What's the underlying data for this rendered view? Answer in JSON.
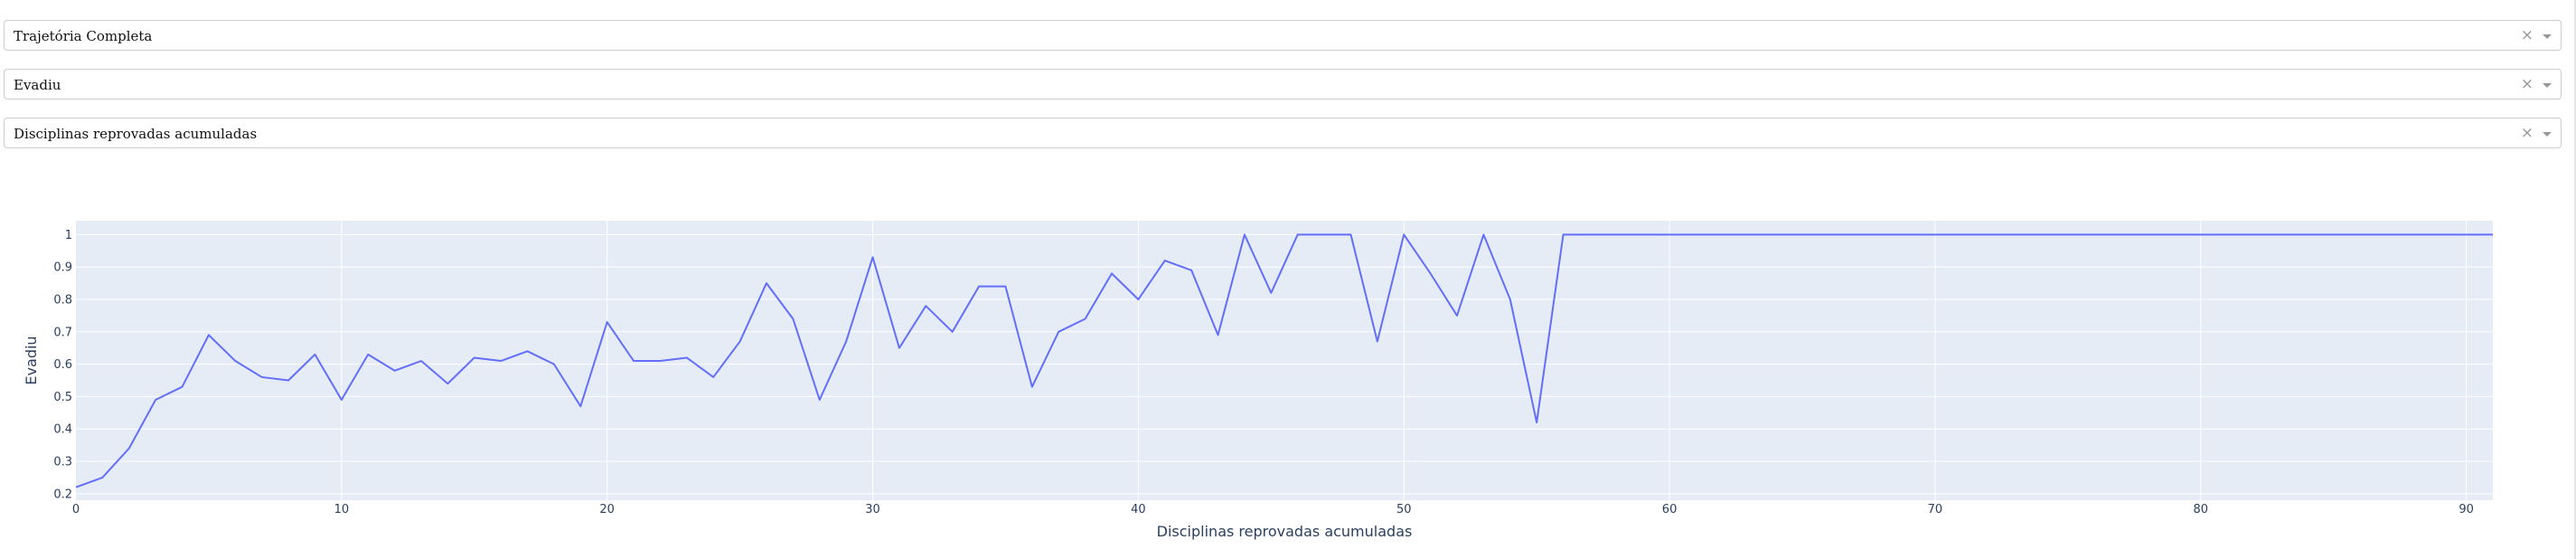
{
  "dropdowns": [
    {
      "value": "Trajetória Completa",
      "clear_glyph": "×"
    },
    {
      "value": "Evadiu",
      "clear_glyph": "×"
    },
    {
      "value": "Disciplinas reprovadas acumuladas",
      "clear_glyph": "×"
    }
  ],
  "colors": {
    "line": "#636efa",
    "plot_bg": "#e5ecf6",
    "grid": "#ffffff",
    "axis_text": "#2a3f5f"
  },
  "chart_data": {
    "type": "line",
    "title": "",
    "xlabel": "Disciplinas reprovadas acumuladas",
    "ylabel": "Evadiu",
    "xlim": [
      0,
      91
    ],
    "ylim": [
      0.18,
      1.043
    ],
    "xticks": [
      0,
      10,
      20,
      30,
      40,
      50,
      60,
      70,
      80,
      90
    ],
    "yticks": [
      0.2,
      0.3,
      0.4,
      0.5,
      0.6,
      0.7,
      0.8,
      0.9,
      1
    ],
    "grid": true,
    "series": [
      {
        "x": [
          0,
          1,
          2,
          3,
          4,
          5,
          6,
          7,
          8,
          9,
          10,
          11,
          12,
          13,
          14,
          15,
          16,
          17,
          18,
          19,
          20,
          21,
          22,
          23,
          24,
          25,
          26,
          27,
          28,
          29,
          30,
          31,
          32,
          33,
          34,
          35,
          36,
          37,
          38,
          39,
          40,
          41,
          42,
          43,
          44,
          45,
          46,
          47,
          48,
          49,
          50,
          51,
          52,
          53,
          54,
          55,
          56,
          57,
          58,
          59,
          60,
          61,
          62,
          63,
          64,
          65,
          66,
          67,
          68,
          69,
          70,
          71,
          72,
          73,
          74,
          75,
          76,
          77,
          78,
          79,
          80,
          81,
          82,
          83,
          84,
          85,
          86,
          87,
          88,
          89,
          90,
          91
        ],
        "y": [
          0.22,
          0.25,
          0.34,
          0.49,
          0.53,
          0.69,
          0.61,
          0.56,
          0.55,
          0.63,
          0.49,
          0.63,
          0.58,
          0.61,
          0.54,
          0.62,
          0.61,
          0.64,
          0.6,
          0.47,
          0.73,
          0.61,
          0.61,
          0.62,
          0.56,
          0.67,
          0.85,
          0.74,
          0.49,
          0.67,
          0.93,
          0.65,
          0.78,
          0.7,
          0.84,
          0.84,
          0.53,
          0.7,
          0.74,
          0.88,
          0.8,
          0.92,
          0.89,
          0.69,
          1.0,
          0.82,
          1.0,
          1.0,
          1.0,
          0.67,
          1.0,
          0.88,
          0.75,
          1.0,
          0.8,
          0.42,
          1.0,
          1.0,
          1.0,
          1.0,
          1.0,
          1.0,
          1.0,
          1.0,
          1.0,
          1.0,
          1.0,
          1.0,
          1.0,
          1.0,
          1.0,
          1.0,
          1.0,
          1.0,
          1.0,
          1.0,
          1.0,
          1.0,
          1.0,
          1.0,
          1.0,
          1.0,
          1.0,
          1.0,
          1.0,
          1.0,
          1.0,
          1.0,
          1.0,
          1.0,
          1.0,
          1.0
        ]
      }
    ]
  }
}
